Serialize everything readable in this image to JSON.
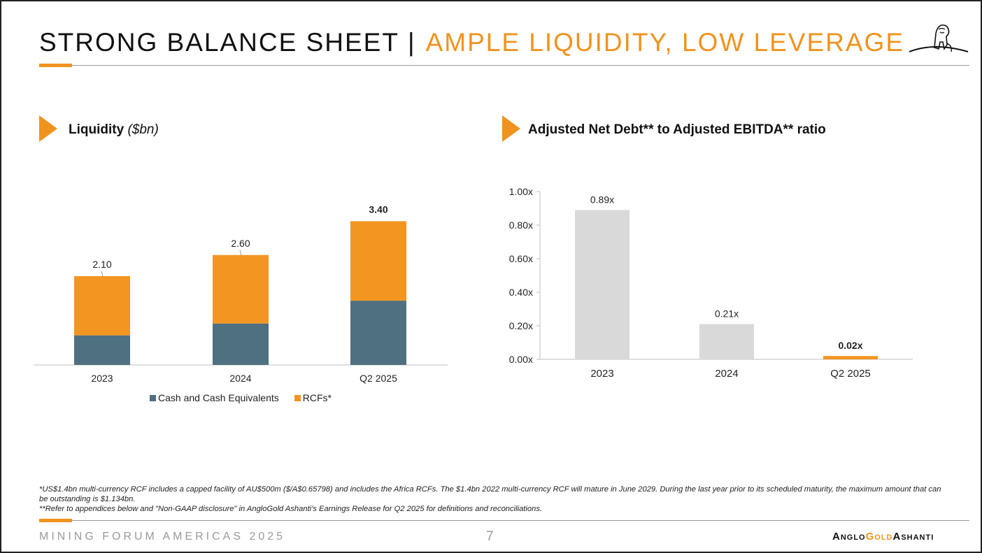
{
  "header": {
    "title_main": "STRONG BALANCE SHEET",
    "separator": "|",
    "title_accent": "AMPLE LIQUIDITY, LOW LEVERAGE"
  },
  "left_section": {
    "title": "Liquidity",
    "unit": "($bn)"
  },
  "right_section": {
    "title": "Adjusted Net Debt** to Adjusted EBITDA** ratio"
  },
  "chart_data": [
    {
      "type": "bar",
      "stacked": true,
      "title": "Liquidity ($bn)",
      "categories": [
        "2023",
        "2024",
        "Q2 2025"
      ],
      "series": [
        {
          "name": "Cash and Cash Equivalents",
          "values": [
            0.7,
            0.98,
            1.52
          ],
          "color": "#4f7080"
        },
        {
          "name": "RCFs*",
          "values": [
            1.4,
            1.62,
            1.88
          ],
          "color": "#f39521"
        }
      ],
      "totals": [
        "2.10",
        "2.60",
        "3.40"
      ],
      "ylim": [
        0,
        4.0
      ],
      "legend": "bottom"
    },
    {
      "type": "bar",
      "title": "Adjusted Net Debt** to Adjusted EBITDA** ratio",
      "categories": [
        "2023",
        "2024",
        "Q2 2025"
      ],
      "values": [
        0.89,
        0.21,
        0.02
      ],
      "labels": [
        "0.89x",
        "0.21x",
        "0.02x"
      ],
      "colors": [
        "#d9d9d9",
        "#d9d9d9",
        "#f39521"
      ],
      "ylim": [
        0,
        1.0
      ],
      "yticks": [
        "0.00x",
        "0.20x",
        "0.40x",
        "0.60x",
        "0.80x",
        "1.00x"
      ],
      "grid": false
    }
  ],
  "footnotes": {
    "line1": "*US$1.4bn multi-currency RCF includes a capped facility of AU$500m ($/A$0.65798) and includes the Africa RCFs. The $1.4bn 2022 multi-currency RCF will mature in June 2029. During the last year prior to its scheduled maturity, the maximum amount that can be outstanding is $1.134bn.",
    "line2": "**Refer to appendices below and \"Non-GAAP disclosure\" in AngloGold Ashanti's Earnings Release for Q2 2025 for definitions and reconciliations."
  },
  "footer": {
    "event": "MINING FORUM AMERICAS 2025",
    "page": "7",
    "brand_part1": "Anglo",
    "brand_part2": "Gold",
    "brand_part3": "Ashanti"
  },
  "colors": {
    "accent": "#f0931e",
    "teal": "#4f7080",
    "grey_bar": "#d9d9d9"
  }
}
